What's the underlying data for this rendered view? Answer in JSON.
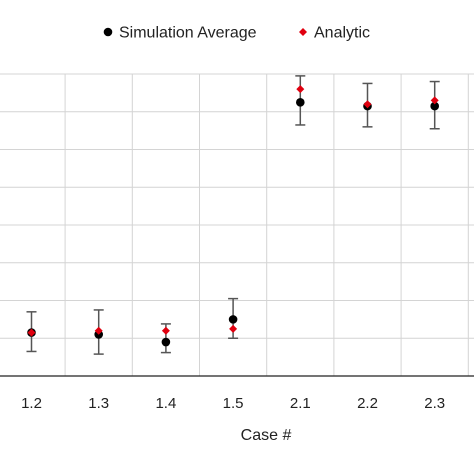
{
  "chart_data": {
    "type": "scatter",
    "categories": [
      "1.2",
      "1.3",
      "1.4",
      "1.5",
      "2.1",
      "2.2",
      "2.3"
    ],
    "xlabel": "Case #",
    "ylabel": "",
    "ylim": [
      0,
      8
    ],
    "grid": true,
    "legend_position": "top",
    "series": [
      {
        "name": "Simulation Average",
        "marker": "circle",
        "color": "#000000",
        "values": [
          1.15,
          1.1,
          0.9,
          1.5,
          7.25,
          7.15,
          7.15
        ],
        "error_low": [
          0.65,
          0.58,
          0.62,
          1.0,
          6.65,
          6.6,
          6.55
        ],
        "error_high": [
          1.7,
          1.75,
          1.38,
          2.05,
          7.95,
          7.75,
          7.8
        ]
      },
      {
        "name": "Analytic",
        "marker": "diamond",
        "color": "#e0000f",
        "values": [
          1.15,
          1.2,
          1.2,
          1.25,
          7.6,
          7.2,
          7.3
        ]
      }
    ]
  }
}
